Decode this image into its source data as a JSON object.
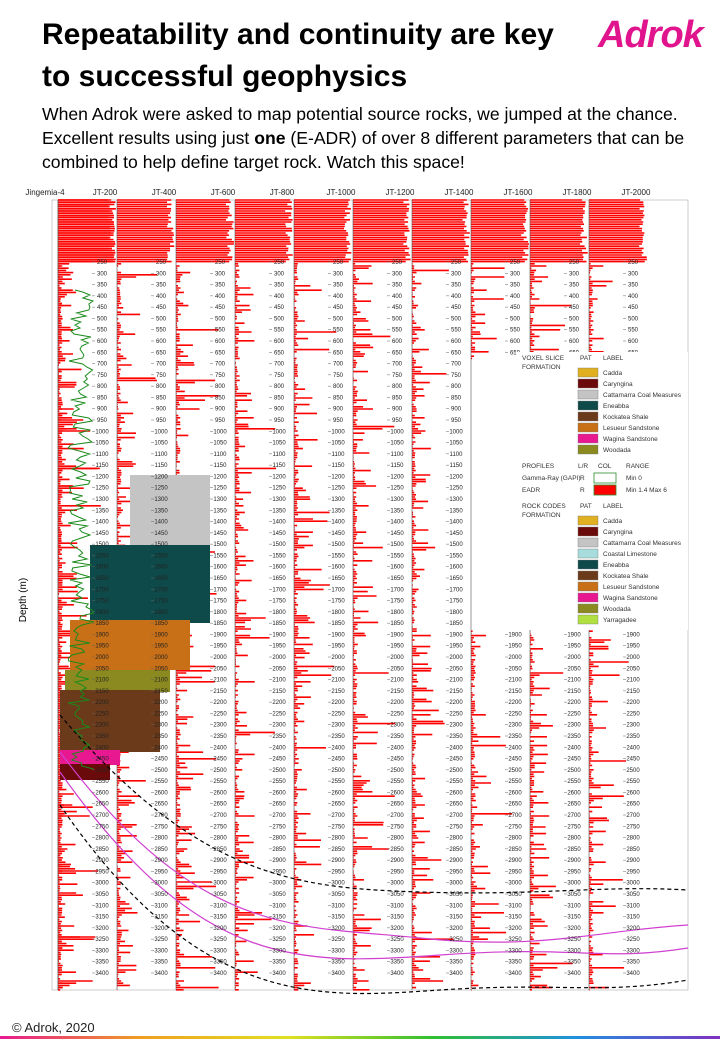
{
  "header": {
    "title": "Repeatability and continuity are key to successful geophysics",
    "logo": "Adrok",
    "body": [
      "When Adrok were asked to map potential source rocks, we jumped at the chance. Excellent results using just ",
      "one",
      " (E-ADR) of over 8 different parameters that can be combined to help define target rock. Watch this space!"
    ]
  },
  "figure": {
    "y_label": "Depth (m)",
    "wells": [
      "Jingemia-4",
      "JT-200",
      "JT-400",
      "JT-600",
      "JT-800",
      "JT-1000",
      "JT-1200",
      "JT-1400",
      "JT-1600",
      "JT-1800",
      "JT-2000"
    ],
    "depth_ticks": [
      250,
      300,
      350,
      400,
      450,
      500,
      550,
      600,
      650,
      700,
      750,
      800,
      850,
      900,
      950,
      1000,
      1050,
      1100,
      1150,
      1200,
      1250,
      1300,
      1350,
      1400,
      1450,
      1500,
      1550,
      1600,
      1650,
      1700,
      1750,
      1800,
      1850,
      1900,
      1950,
      2000,
      2050,
      2100,
      2150,
      2200,
      2250,
      2300,
      2350,
      2400,
      2450,
      2500,
      2550,
      2600,
      2650,
      2700,
      2750,
      2800,
      2850,
      2900,
      2950,
      3000,
      3050,
      3100,
      3150,
      3200,
      3250,
      3300,
      3350,
      3400
    ],
    "upper_depth_ticks": [
      250,
      300,
      350,
      400,
      450,
      500,
      550,
      600,
      650
    ],
    "lower_depth_ticks": [
      1900,
      1950,
      2000,
      2050,
      2100,
      2150,
      2200,
      2250,
      2300,
      2350,
      2400,
      2450,
      2500,
      2550,
      2600,
      2650,
      2700,
      2750,
      2800,
      2850,
      2900,
      2950,
      3000,
      3050,
      3100,
      3150,
      3200,
      3250,
      3300,
      3350,
      3400
    ],
    "voxel_legend": {
      "heading": [
        "VOXEL SLICE",
        "FORMATION"
      ],
      "pat": "PAT",
      "label": "LABEL",
      "items": [
        {
          "name": "Cadda",
          "color": "#e0b020"
        },
        {
          "name": "Caryngina",
          "color": "#6b0a0a"
        },
        {
          "name": "Cattamarra Coal Measures",
          "color": "#c4c4c4"
        },
        {
          "name": "Eneabba",
          "color": "#0f4a4a"
        },
        {
          "name": "Kockatea Shale",
          "color": "#6b3a1a"
        },
        {
          "name": "Lesueur Sandstone",
          "color": "#c87018"
        },
        {
          "name": "Wagina Sandstone",
          "color": "#e81890"
        },
        {
          "name": "Woodada",
          "color": "#8a8a20"
        }
      ]
    },
    "profiles": {
      "heading": "PROFILES",
      "lr": "L/R",
      "col": "COL",
      "range": "RANGE",
      "items": [
        {
          "name": "Gamma-Ray (GAPI)",
          "lr": "R",
          "color": "#ffffff",
          "range": "Min 0"
        },
        {
          "name": "EADR",
          "lr": "R",
          "color": "#ff0000",
          "range": "Min 1.4  Max 6"
        }
      ]
    },
    "rock_legend": {
      "heading": [
        "ROCK CODES",
        "FORMATION"
      ],
      "pat": "PAT",
      "label": "LABEL",
      "items": [
        {
          "name": "Cadda",
          "color": "#e0b020"
        },
        {
          "name": "Caryngina",
          "color": "#6b0a0a"
        },
        {
          "name": "Cattamarra Coal Measures",
          "color": "#c4c4c4"
        },
        {
          "name": "Coastal Limestone",
          "color": "#a8dcdc"
        },
        {
          "name": "Eneabba",
          "color": "#0f4a4a"
        },
        {
          "name": "Kockatea Shale",
          "color": "#6b3a1a"
        },
        {
          "name": "Lesueur Sandstone",
          "color": "#c87018"
        },
        {
          "name": "Wagina Sandstone",
          "color": "#e81890"
        },
        {
          "name": "Woodada",
          "color": "#8a8a20"
        },
        {
          "name": "Yarragadee",
          "color": "#b0e040"
        }
      ]
    }
  },
  "footer": "© Adrok, 2020"
}
